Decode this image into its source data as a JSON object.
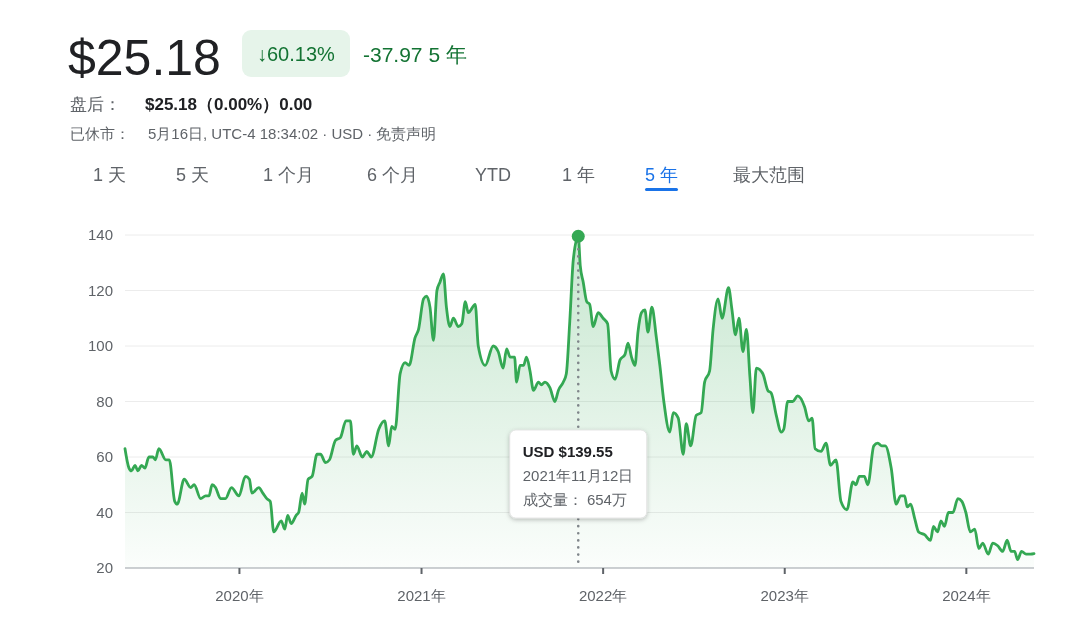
{
  "chart_data": {
    "type": "area",
    "title": "$25.18",
    "annotations": [
      "↓60.13%",
      "-37.97 5 年",
      "盘后：",
      "$25.18（0.00%）0.00",
      "已休市：",
      "5月16日, UTC-4 18:34:02 · USD · 免责声明",
      "1 天",
      "5 天",
      "1 个月",
      "6 个月",
      "YTD",
      "1 年",
      "5 年",
      "最大范围",
      "USD $139.55",
      "2021年11月12日",
      "成交量： 654万"
    ],
    "x": [
      "2019-05-16",
      "2019-05-24",
      "2019-05-29",
      "2019-06-05",
      "2019-06-11",
      "2019-06-18",
      "2019-06-25",
      "2019-07-03",
      "2019-07-11",
      "2019-07-16",
      "2019-07-23",
      "2019-08-06",
      "2019-08-13",
      "2019-08-24",
      "2019-08-29",
      "2019-09-12",
      "2019-09-25",
      "2019-10-02",
      "2019-10-15",
      "2019-10-25",
      "2019-11-01",
      "2019-11-07",
      "2019-11-14",
      "2019-11-24",
      "2019-12-04",
      "2019-12-16",
      "2019-12-31",
      "2020-01-13",
      "2020-01-21",
      "2020-01-26",
      "2020-02-09",
      "2020-02-17",
      "2020-02-25",
      "2020-03-03",
      "2020-03-10",
      "2020-03-25",
      "2020-04-01",
      "2020-04-07",
      "2020-04-14",
      "2020-04-24",
      "2020-04-29",
      "2020-05-06",
      "2020-05-11",
      "2020-05-18",
      "2020-05-26",
      "2020-06-05",
      "2020-06-12",
      "2020-06-22",
      "2020-06-30",
      "2020-07-12",
      "2020-07-22",
      "2020-08-02",
      "2020-08-11",
      "2020-08-17",
      "2020-08-24",
      "2020-09-04",
      "2020-09-13",
      "2020-09-22",
      "2020-10-07",
      "2020-10-19",
      "2020-10-27",
      "2020-11-02",
      "2020-11-09",
      "2020-11-19",
      "2020-11-29",
      "2020-12-07",
      "2020-12-19",
      "2020-12-26",
      "2021-01-05",
      "2021-01-11",
      "2021-01-18",
      "2021-01-25",
      "2021-02-01",
      "2021-02-07",
      "2021-02-14",
      "2021-02-20",
      "2021-02-27",
      "2021-03-06",
      "2021-03-16",
      "2021-03-23",
      "2021-03-30",
      "2021-04-05",
      "2021-04-19",
      "2021-04-25",
      "2021-05-09",
      "2021-05-25",
      "2021-06-04",
      "2021-06-14",
      "2021-06-21",
      "2021-06-28",
      "2021-07-07",
      "2021-07-11",
      "2021-07-18",
      "2021-07-25",
      "2021-07-31",
      "2021-08-07",
      "2021-08-14",
      "2021-08-24",
      "2021-08-30",
      "2021-09-06",
      "2021-09-16",
      "2021-09-26",
      "2021-10-03",
      "2021-10-13",
      "2021-10-19",
      "2021-10-26",
      "2021-11-02",
      "2021-11-12",
      "2021-11-16",
      "2021-11-22",
      "2021-11-29",
      "2021-12-05",
      "2021-12-12",
      "2021-12-22",
      "2022-01-01",
      "2022-01-10",
      "2022-01-17",
      "2022-01-25",
      "2022-02-04",
      "2022-02-14",
      "2022-02-20",
      "2022-02-27",
      "2022-03-06",
      "2022-03-12",
      "2022-03-19",
      "2022-03-26",
      "2022-04-01",
      "2022-04-09",
      "2022-04-18",
      "2022-04-25",
      "2022-05-03",
      "2022-05-15",
      "2022-05-22",
      "2022-06-01",
      "2022-06-11",
      "2022-06-17",
      "2022-06-26",
      "2022-07-07",
      "2022-07-17",
      "2022-07-24",
      "2022-08-03",
      "2022-08-10",
      "2022-08-20",
      "2022-08-28",
      "2022-09-10",
      "2022-09-17",
      "2022-09-24",
      "2022-10-01",
      "2022-10-09",
      "2022-10-16",
      "2022-10-23",
      "2022-10-29",
      "2022-11-05",
      "2022-11-18",
      "2022-11-28",
      "2022-12-05",
      "2022-12-15",
      "2022-12-25",
      "2022-12-30",
      "2023-01-07",
      "2023-01-17",
      "2023-01-27",
      "2023-02-10",
      "2023-02-18",
      "2023-02-25",
      "2023-03-03",
      "2023-03-15",
      "2023-03-25",
      "2023-04-03",
      "2023-04-14",
      "2023-04-24",
      "2023-05-06",
      "2023-05-18",
      "2023-05-24",
      "2023-05-31",
      "2023-06-10",
      "2023-06-17",
      "2023-06-29",
      "2023-07-07",
      "2023-07-15",
      "2023-07-22",
      "2023-08-03",
      "2023-08-13",
      "2023-08-22",
      "2023-08-30",
      "2023-09-04",
      "2023-09-11",
      "2023-09-19",
      "2023-09-27",
      "2023-10-09",
      "2023-10-21",
      "2023-10-27",
      "2023-11-04",
      "2023-11-11",
      "2023-11-18",
      "2023-11-26",
      "2023-12-05",
      "2023-12-15",
      "2023-12-23",
      "2023-12-31",
      "2024-01-09",
      "2024-01-18",
      "2024-01-26",
      "2024-02-03",
      "2024-02-14",
      "2024-02-23",
      "2024-03-04",
      "2024-03-14",
      "2024-03-23",
      "2024-03-31",
      "2024-04-07",
      "2024-04-13",
      "2024-04-21",
      "2024-04-30",
      "2024-05-09",
      "2024-05-16"
    ],
    "series": [
      {
        "color": "#34a853",
        "values": [
          63,
          56,
          55,
          57,
          55,
          57,
          56,
          60,
          60,
          59,
          63,
          59,
          59,
          44,
          43,
          52,
          49,
          50,
          45,
          46,
          46,
          50,
          49,
          45,
          45,
          49,
          46,
          53,
          52,
          47,
          49,
          47,
          45,
          44,
          33,
          37,
          34,
          39,
          36,
          39,
          40,
          47,
          43,
          52,
          53,
          61,
          61,
          58,
          59,
          66,
          67,
          73,
          73,
          61,
          64,
          60,
          62,
          60,
          70,
          73,
          64,
          71,
          70,
          90,
          94,
          93,
          103,
          106,
          117,
          118,
          114,
          102,
          120,
          123,
          126,
          114,
          107,
          110,
          107,
          108,
          116,
          112,
          115,
          100,
          93,
          100,
          98,
          92,
          99,
          96,
          96,
          87,
          93,
          93,
          96,
          91,
          84,
          87,
          86,
          87,
          85,
          80,
          84,
          87,
          90,
          109,
          131,
          139.55,
          129,
          123,
          116,
          115,
          107,
          112,
          110,
          108,
          91,
          88,
          95,
          97,
          101,
          96,
          93,
          105,
          112,
          113,
          105,
          114,
          103,
          93,
          80,
          69,
          76,
          74,
          61,
          72,
          64,
          75,
          76,
          87,
          91,
          106,
          117,
          110,
          121,
          113,
          104,
          110,
          98,
          106,
          89,
          76,
          92,
          90,
          84,
          83,
          75,
          69,
          70,
          80,
          80,
          82,
          78,
          73,
          74,
          63,
          62,
          65,
          57,
          59,
          44,
          41,
          51,
          50,
          53,
          53,
          50,
          64,
          65,
          64,
          64,
          56,
          43,
          46,
          46,
          42,
          43,
          38,
          33,
          32,
          30,
          35,
          33,
          37,
          35,
          40,
          40,
          45,
          44,
          40,
          33,
          34,
          27,
          29,
          25,
          29,
          28,
          26,
          30,
          26,
          26,
          23,
          26,
          25,
          25,
          25.18
        ]
      },
      {
        "type": "scatter",
        "x": [
          "2021-11-12"
        ],
        "values": [
          139.55
        ],
        "color": "#34a853",
        "marker": "circle"
      }
    ],
    "xlim": [
      "2019-05-16",
      "2024-05-16"
    ],
    "xticks": [
      {
        "value": "2020",
        "label": "2020年"
      },
      {
        "value": "2021",
        "label": "2021年"
      },
      {
        "value": "2022",
        "label": "2022年"
      },
      {
        "value": "2023",
        "label": "2023年"
      },
      {
        "value": "2024",
        "label": "2024年"
      }
    ],
    "ylim": [
      20,
      140
    ],
    "yticks": [
      20,
      40,
      60,
      80,
      100,
      120,
      140
    ],
    "grid": "y",
    "ref_lines": [
      {
        "axis": "x",
        "value": "2021-11-12",
        "color": "#80868b",
        "line_style": "dotted"
      }
    ]
  }
}
